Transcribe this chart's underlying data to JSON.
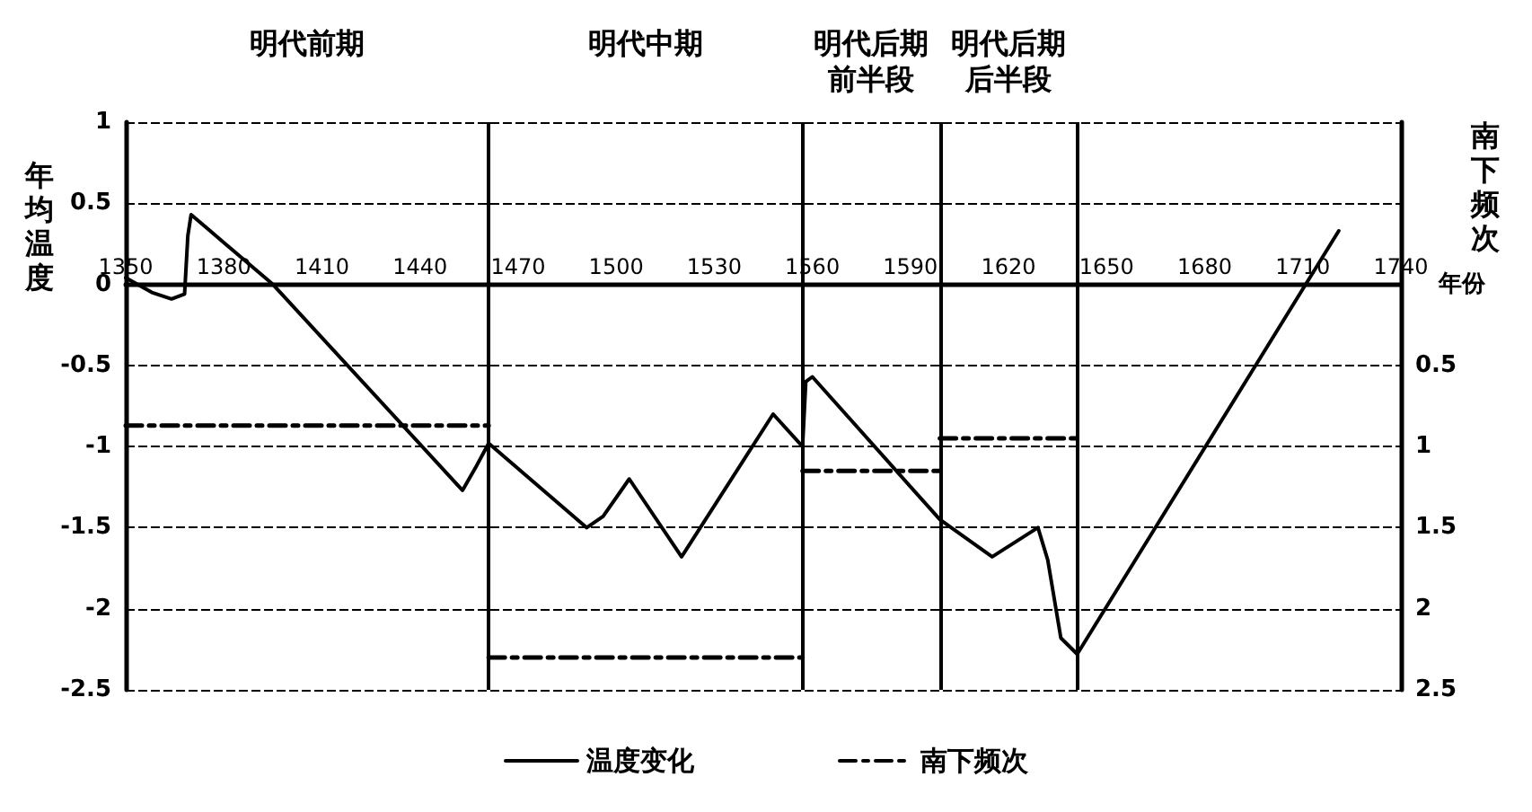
{
  "chart_data": {
    "type": "line",
    "ylabel": "年均温度",
    "y2label": "南下频次",
    "xlabel": "年份",
    "annotations": [
      "明代前期",
      "明代中期",
      "明代后期前半段",
      "明代后期后半段"
    ],
    "xlim": [
      1350,
      1740
    ],
    "xticks": [
      1350,
      1380,
      1410,
      1440,
      1470,
      1500,
      1530,
      1560,
      1590,
      1620,
      1650,
      1680,
      1710,
      1740
    ],
    "ylim": [
      -2.5,
      1
    ],
    "yticks": [
      -2.5,
      -2,
      -1.5,
      -1,
      -0.5,
      0,
      0.5,
      1
    ],
    "y2lim": [
      2.5,
      -1
    ],
    "y2ticks": [
      0.5,
      1,
      1.5,
      2,
      2.5
    ],
    "series": [
      {
        "name": "温度变化",
        "color": "#000000",
        "line_style": "solid",
        "x": [
          1350,
          1358,
          1364,
          1368,
          1369,
          1370,
          1395,
          1453,
          1457,
          1461,
          1491,
          1496,
          1504,
          1520,
          1548,
          1557,
          1558,
          1560,
          1599,
          1615,
          1629,
          1632,
          1636,
          1641,
          1721
        ],
        "values": [
          0.04,
          -0.05,
          -0.09,
          -0.06,
          0.3,
          0.43,
          0.0,
          -1.27,
          -1.13,
          -0.98,
          -1.5,
          -1.43,
          -1.2,
          -1.68,
          -0.8,
          -1.0,
          -0.6,
          -0.57,
          -1.45,
          -1.68,
          -1.5,
          -1.7,
          -2.18,
          -2.28,
          0.33
        ]
      },
      {
        "name": "南下频次",
        "color": "#000000",
        "line_style": "dashed",
        "axis": "y2",
        "x": [
          1350,
          1461
        ],
        "values": [
          0.87,
          0.87
        ]
      },
      {
        "color": "#000000",
        "line_style": "dashed",
        "axis": "y2",
        "x": [
          1461,
          1557
        ],
        "values": [
          2.3,
          2.3
        ]
      },
      {
        "color": "#000000",
        "line_style": "dashed",
        "axis": "y2",
        "x": [
          1557,
          1599
        ],
        "values": [
          1.15,
          1.15
        ]
      },
      {
        "color": "#000000",
        "line_style": "dashed",
        "axis": "y2",
        "x": [
          1599,
          1641
        ],
        "values": [
          0.95,
          0.95
        ]
      }
    ],
    "ref_lines": [
      {
        "axis": "x",
        "value": 1461,
        "color": "#000000",
        "line_style": "solid"
      },
      {
        "axis": "x",
        "value": 1557,
        "color": "#000000",
        "line_style": "solid"
      },
      {
        "axis": "x",
        "value": 1599,
        "color": "#000000",
        "line_style": "solid"
      },
      {
        "axis": "x",
        "value": 1641,
        "color": "#000000",
        "line_style": "solid"
      }
    ],
    "grid": "y",
    "legend": "bottom",
    "marker": "none"
  }
}
